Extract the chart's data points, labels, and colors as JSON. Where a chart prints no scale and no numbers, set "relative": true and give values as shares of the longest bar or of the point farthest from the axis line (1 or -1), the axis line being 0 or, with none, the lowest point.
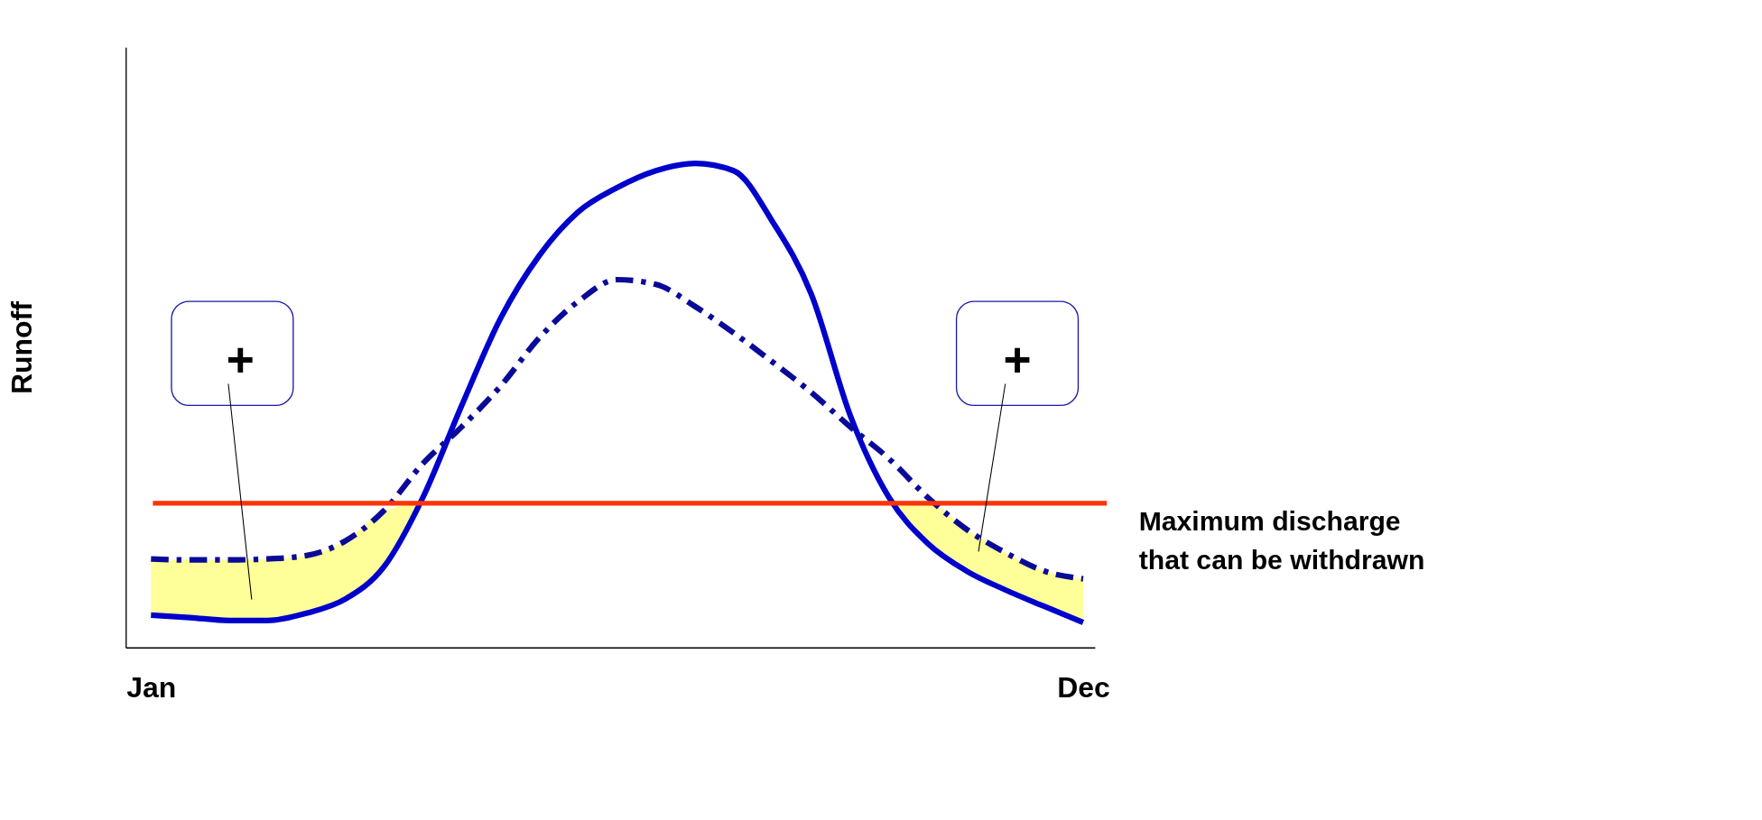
{
  "chart_data": {
    "type": "line",
    "relative": true,
    "ylabel": "Runoff",
    "grid": false,
    "marker": "none",
    "tick_labels": "x",
    "categories": [
      "Jan",
      null,
      null,
      null,
      null,
      null,
      null,
      null,
      null,
      null,
      null,
      null,
      null,
      null,
      null,
      null,
      null,
      null,
      null,
      null,
      null,
      null,
      null,
      null,
      "Dec"
    ],
    "series": [
      {
        "color": "#0000cc",
        "line_style": "solid",
        "values": [
          0.067,
          0.062,
          0.056,
          0.056,
          0.071,
          0.1,
          0.167,
          0.31,
          0.5,
          0.68,
          0.81,
          0.9,
          0.95,
          0.985,
          1.0,
          0.985,
          0.88,
          0.73,
          0.48,
          0.31,
          0.215,
          0.158,
          0.119,
          0.085,
          0.052
        ]
      },
      {
        "color": "#0a0a99",
        "line_style": "dashdot",
        "values": [
          0.183,
          0.181,
          0.181,
          0.183,
          0.19,
          0.22,
          0.283,
          0.38,
          0.456,
          0.54,
          0.64,
          0.715,
          0.76,
          0.75,
          0.705,
          0.65,
          0.59,
          0.527,
          0.456,
          0.39,
          0.31,
          0.244,
          0.196,
          0.158,
          0.142
        ],
        "upper": [
          0.183,
          0.181,
          0.181,
          0.183,
          0.19,
          0.22,
          0.283,
          0.298,
          null,
          null,
          null,
          null,
          null,
          null,
          null,
          null,
          null,
          null,
          null,
          0.298,
          0.298,
          0.244,
          0.196,
          0.158,
          0.142
        ],
        "lower": [
          0.067,
          0.062,
          0.056,
          0.056,
          0.071,
          0.1,
          0.167,
          0.298,
          null,
          null,
          null,
          null,
          null,
          null,
          null,
          null,
          null,
          null,
          null,
          0.298,
          0.215,
          0.158,
          0.119,
          0.085,
          0.052
        ]
      }
    ],
    "ref_lines": [
      {
        "axis": "y",
        "value": 0.298,
        "label": "Maximum discharge\nthat can be withdrawn",
        "color": "#ff3300"
      }
    ],
    "annotations": [
      "+",
      "+"
    ]
  }
}
